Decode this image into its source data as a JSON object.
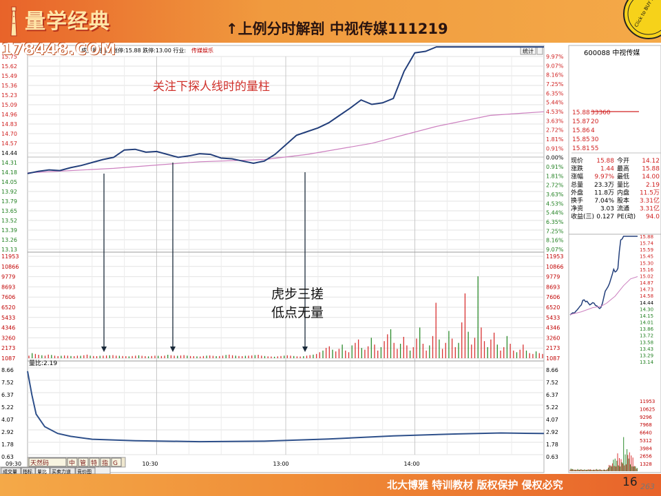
{
  "header": {
    "logo": "量学经典",
    "title": "↑上例分时解剖 中视传媒111219",
    "site": "178448.COM",
    "badge": "Click to BUY NOW! www.tracker-software.com"
  },
  "footer": {
    "text": "北大博雅 特训教材 版权保护 侵权必究",
    "page": "16",
    "page_tail": "263"
  },
  "chart_info": {
    "top_label": "成交量 量比 涨停:15.88 跌停:13.00 行业:",
    "industry": "传媒娱乐",
    "stat_button": "统计",
    "vol_ratio_label": "量比:2.19"
  },
  "annotations": {
    "headline": "关注下探人线时的量柱",
    "note1": "虎步三搓",
    "note2": "低点无量"
  },
  "left_axis": {
    "price": [
      "15.75",
      "15.62",
      "15.49",
      "15.36",
      "15.23",
      "15.09",
      "14.96",
      "14.83",
      "14.70",
      "14.57",
      "14.44",
      "14.31",
      "14.18",
      "14.05",
      "13.92",
      "13.79",
      "13.65",
      "13.52",
      "13.39",
      "13.26",
      "13.13"
    ],
    "volume": [
      "11953",
      "10866",
      "9779",
      "8693",
      "7606",
      "6520",
      "5433",
      "4346",
      "3260",
      "2173",
      "1087"
    ],
    "ratio": [
      "8.66",
      "7.52",
      "6.37",
      "5.22",
      "4.07",
      "2.92",
      "1.78",
      "0.63"
    ]
  },
  "right_axis": {
    "pct": [
      "9.97%",
      "9.07%",
      "8.16%",
      "7.25%",
      "6.35%",
      "5.44%",
      "4.53%",
      "3.63%",
      "2.72%",
      "1.81%",
      "0.91%",
      "0.00%",
      "0.91%",
      "1.81%",
      "2.72%",
      "3.63%",
      "4.53%",
      "5.44%",
      "6.35%",
      "7.25%",
      "8.16%",
      "9.07%"
    ],
    "volume": [
      "11953",
      "10866",
      "9779",
      "8693",
      "7606",
      "6520",
      "5433",
      "4346",
      "3260",
      "2173",
      "1087"
    ],
    "ratio": [
      "8.66",
      "7.52",
      "6.37",
      "5.22",
      "4.07",
      "2.92",
      "1.78",
      "0.63"
    ]
  },
  "time_axis": [
    "09:30",
    "10:30",
    "13:00",
    "14:00"
  ],
  "bottom_tabs": {
    "row1": [
      "天然码",
      "中",
      "管",
      "特",
      "指",
      "G"
    ],
    "row2": [
      "成交量",
      "指标",
      "量比",
      "买卖力道",
      "竞价图"
    ]
  },
  "side_panel": {
    "code": "600088 中视传媒",
    "orderbook": [
      {
        "price": "15.88",
        "vol": "33360"
      },
      {
        "price": "15.87",
        "vol": "20"
      },
      {
        "price": "15.86",
        "vol": "4"
      },
      {
        "price": "15.85",
        "vol": "30"
      },
      {
        "price": "15.81",
        "vol": "55"
      }
    ],
    "stats": [
      {
        "k1": "现价",
        "v1": "15.88",
        "k2": "今开",
        "v2": "14.12"
      },
      {
        "k1": "涨跌",
        "v1": "1.44",
        "k2": "最高",
        "v2": "15.88"
      },
      {
        "k1": "涨幅",
        "v1": "9.97%",
        "k2": "最低",
        "v2": "14.00"
      },
      {
        "k1": "总量",
        "v1": "23.3万",
        "k2": "量比",
        "v2": "2.19"
      },
      {
        "k1": "外盘",
        "v1": "11.8万",
        "k2": "内盘",
        "v2": "11.5万"
      },
      {
        "k1": "换手",
        "v1": "7.04%",
        "k2": "股本",
        "v2": "3.31亿"
      },
      {
        "k1": "净资",
        "v1": "3.03",
        "k2": "流通",
        "v2": "3.31亿"
      },
      {
        "k1": "收益(三)",
        "v1": "0.127",
        "k2": "PE(动)",
        "v2": "94.0"
      }
    ],
    "mini_axis": [
      "15.88",
      "15.74",
      "15.59",
      "15.45",
      "15.30",
      "15.16",
      "15.02",
      "14.87",
      "14.73",
      "14.58",
      "14.44",
      "14.30",
      "14.15",
      "14.01",
      "13.86",
      "13.72",
      "13.58",
      "13.43",
      "13.29",
      "13.14"
    ],
    "mini_vol_axis": [
      "11953",
      "10625",
      "9296",
      "7968",
      "6640",
      "5312",
      "3984",
      "2656",
      "1328"
    ]
  },
  "chart_data": {
    "type": "line",
    "title": "",
    "prev_close": 14.44,
    "limit_up": 15.88,
    "limit_down": 13.0,
    "ylim": [
      13.13,
      15.75
    ],
    "price_series": {
      "x": [
        0,
        5,
        10,
        15,
        20,
        25,
        30,
        35,
        40,
        45,
        50,
        55,
        60,
        65,
        70,
        75,
        80,
        85,
        90,
        95,
        100,
        105,
        110,
        115,
        120,
        125,
        130,
        135,
        140,
        145,
        150,
        155,
        160,
        165,
        170,
        175,
        180,
        185,
        190,
        195,
        200,
        205,
        210,
        215,
        220,
        225,
        230,
        235,
        240
      ],
      "y": [
        14.16,
        14.19,
        14.21,
        14.2,
        14.24,
        14.27,
        14.31,
        14.35,
        14.38,
        14.48,
        14.49,
        14.45,
        14.46,
        14.42,
        14.38,
        14.4,
        14.43,
        14.42,
        14.37,
        14.36,
        14.33,
        14.3,
        14.33,
        14.42,
        14.55,
        14.68,
        14.73,
        14.78,
        14.85,
        14.95,
        15.05,
        15.16,
        15.1,
        15.12,
        15.18,
        15.55,
        15.8,
        15.82,
        15.88,
        15.88,
        15.88,
        15.88,
        15.88,
        15.88,
        15.88,
        15.88,
        15.88,
        15.88,
        15.88
      ]
    },
    "avg_series": {
      "x": [
        0,
        40,
        80,
        110,
        130,
        160,
        190,
        215,
        240
      ],
      "y": [
        14.17,
        14.23,
        14.32,
        14.35,
        14.42,
        14.57,
        14.8,
        14.95,
        15.0
      ]
    },
    "volume_series": [
      300,
      600,
      500,
      400,
      350,
      300,
      420,
      380,
      300,
      250,
      280,
      320,
      300,
      260,
      240,
      300,
      280,
      350,
      420,
      300,
      260,
      240,
      280,
      300,
      320,
      340,
      360,
      300,
      280,
      260,
      240,
      220,
      260,
      300,
      340,
      280,
      240,
      220,
      260,
      300,
      280,
      260,
      300,
      400,
      350,
      300,
      280,
      320,
      360,
      300,
      260,
      240,
      220,
      200,
      260,
      300,
      320,
      280,
      240,
      260,
      300,
      380,
      420,
      350,
      300,
      260,
      240,
      280,
      300,
      320,
      360,
      400,
      300,
      260,
      220,
      200,
      180,
      220,
      260,
      300,
      340,
      300,
      260,
      220,
      200,
      240,
      300,
      360,
      420,
      500,
      700,
      900,
      1200,
      1400,
      1000,
      800,
      1100,
      1600,
      900,
      700,
      1500,
      1800,
      2200,
      1200,
      1000,
      1400,
      2400,
      1600,
      900,
      1300,
      2000,
      2800,
      3400,
      1800,
      1100,
      1700,
      2500,
      1500,
      900,
      1300,
      2300,
      3600,
      1700,
      900,
      1500,
      2600,
      6500,
      2200,
      1100,
      1800,
      3200,
      2300,
      1300,
      1800,
      4200,
      7600,
      3100,
      1600,
      2400,
      9600,
      3600,
      2000,
      1300,
      2200,
      3000,
      1600,
      900,
      1300,
      2600,
      1700,
      900,
      700,
      1000,
      1600,
      900,
      600,
      500,
      800,
      600,
      500
    ],
    "volume_ylim": [
      0,
      11953
    ],
    "ratio_series": {
      "x": [
        0,
        2,
        4,
        8,
        14,
        20,
        30,
        50,
        80,
        110,
        140,
        170,
        200,
        220,
        240
      ],
      "y": [
        8.66,
        6.2,
        4.2,
        2.9,
        2.2,
        1.9,
        1.6,
        1.45,
        1.35,
        1.4,
        1.62,
        1.95,
        2.15,
        2.25,
        2.19
      ]
    },
    "ratio_ylim": [
      0,
      9.0
    ]
  }
}
